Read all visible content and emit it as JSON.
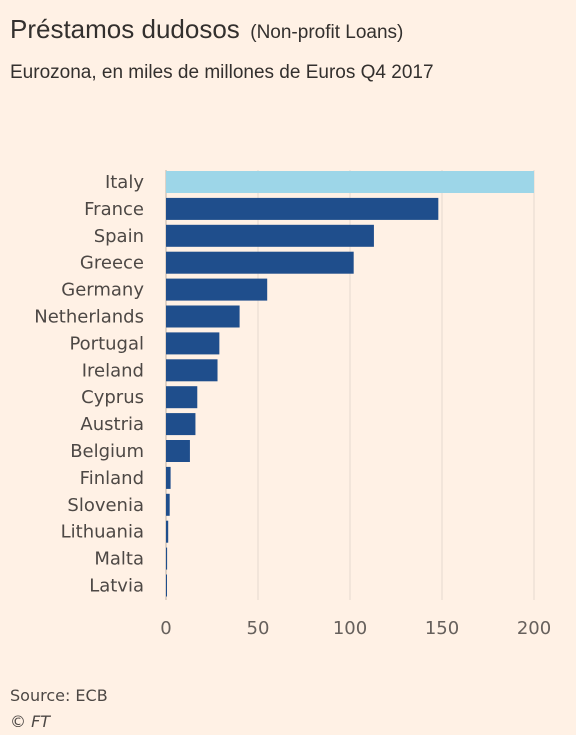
{
  "header": {
    "title": "Préstamos dudosos",
    "title_paren": "(Non-profit Loans)",
    "subtitle": "Eurozona, en miles de millones de Euros Q4 2017"
  },
  "footer": {
    "source": "Source: ECB",
    "copyright": "© FT"
  },
  "colors": {
    "background": "#fff1e5",
    "highlight_bar": "#9dd6e8",
    "bar": "#1f4e8c",
    "grid": "#e6d9ce"
  },
  "chart_data": {
    "type": "bar",
    "orientation": "horizontal",
    "title": "Préstamos dudosos",
    "categories": [
      "Italy",
      "France",
      "Spain",
      "Greece",
      "Germany",
      "Netherlands",
      "Portugal",
      "Ireland",
      "Cyprus",
      "Austria",
      "Belgium",
      "Finland",
      "Slovenia",
      "Lithuania",
      "Malta",
      "Latvia"
    ],
    "values": [
      200,
      148,
      113,
      102,
      55,
      40,
      29,
      28,
      17,
      16,
      13,
      2.5,
      2,
      1.2,
      0.6,
      0.4
    ],
    "highlight": "Italy",
    "xlim": [
      0,
      200
    ],
    "xticks": [
      0,
      50,
      100,
      150,
      200
    ],
    "grid": true
  }
}
